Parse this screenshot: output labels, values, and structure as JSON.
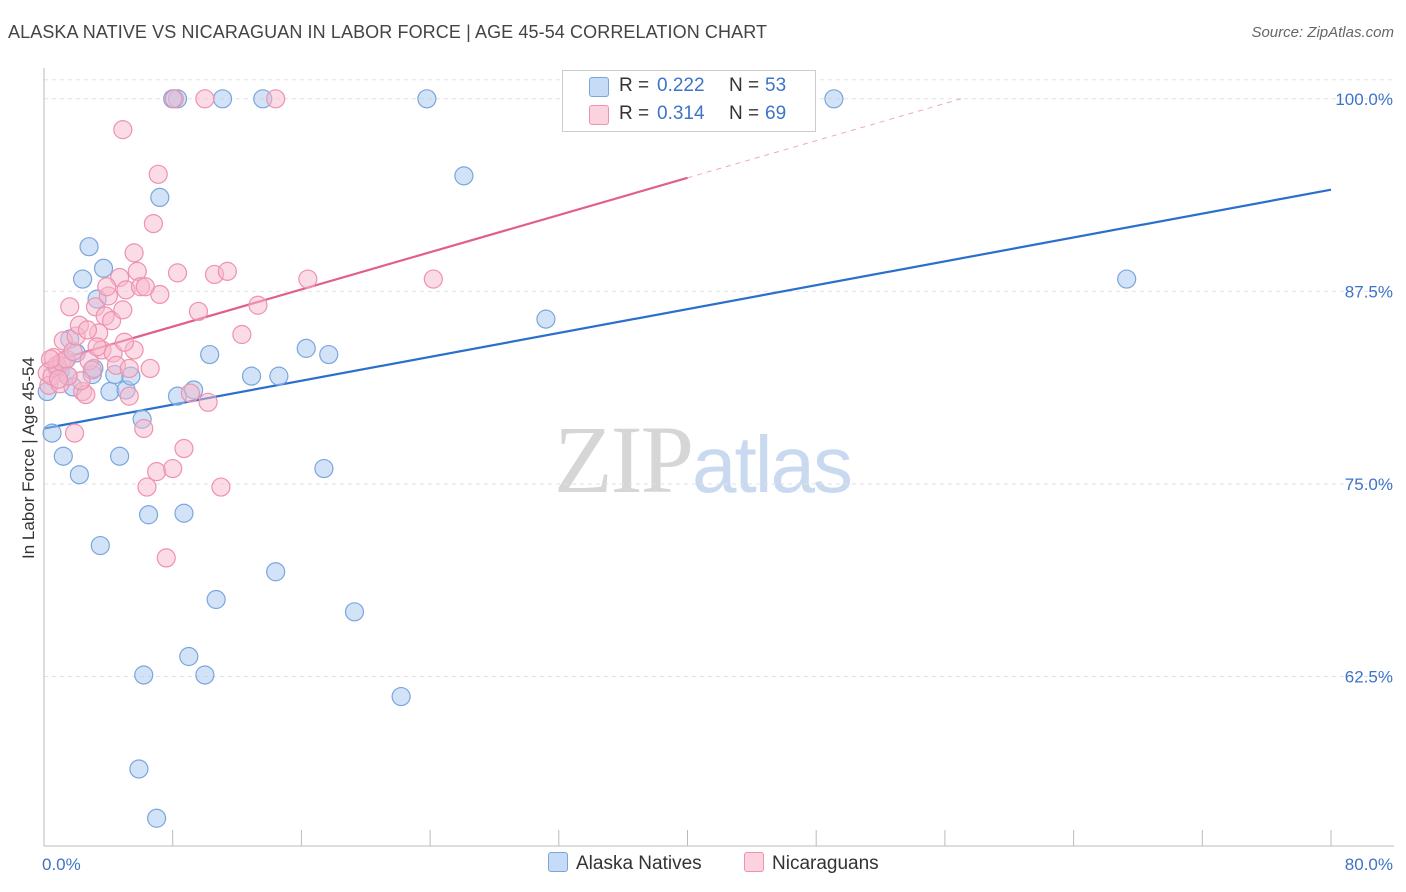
{
  "title": "ALASKA NATIVE VS NICARAGUAN IN LABOR FORCE | AGE 45-54 CORRELATION CHART",
  "source": "Source: ZipAtlas.com",
  "watermark": {
    "part1": "ZIP",
    "part2": "atlas"
  },
  "legend": {
    "series1": {
      "r_label": "R =",
      "r_value": "0.222",
      "n_label": "N =",
      "n_value": "53"
    },
    "series2": {
      "r_label": "R =",
      "r_value": "0.314",
      "n_label": "N =",
      "n_value": "69"
    }
  },
  "bottom_legend": {
    "series1": "Alaska Natives",
    "series2": "Nicaraguans"
  },
  "colors": {
    "blue_fill": "#a8c8f0",
    "blue_stroke": "#7aa6dd",
    "blue_line": "#2a6fcc",
    "pink_fill": "#f7b8cb",
    "pink_stroke": "#ee92b0",
    "pink_line": "#e0608a",
    "axis_label": "#3e73c8",
    "grid": "#e2e2e2"
  },
  "chart_data": {
    "type": "scatter",
    "title": "ALASKA NATIVE VS NICARAGUAN IN LABOR FORCE | AGE 45-54 CORRELATION CHART",
    "xlabel": "",
    "ylabel": "In Labor Force | Age 45-54",
    "xlim": [
      0,
      80
    ],
    "ylim": [
      51.5,
      102
    ],
    "x_tick_labels": [
      "0.0%",
      "80.0%"
    ],
    "y_ticks": [
      62.5,
      75.0,
      87.5,
      100.0
    ],
    "y_tick_labels": [
      "62.5%",
      "75.0%",
      "87.5%",
      "100.0%"
    ],
    "series": [
      {
        "name": "Alaska Natives",
        "r": 0.222,
        "n": 53,
        "trend": {
          "x": [
            0,
            80
          ],
          "y": [
            78.6,
            94.1
          ],
          "solid_until": 80
        },
        "points": [
          [
            0.2,
            81.0
          ],
          [
            0.5,
            78.3
          ],
          [
            0.8,
            82.5
          ],
          [
            1.0,
            82.3
          ],
          [
            1.2,
            76.8
          ],
          [
            1.3,
            83.0
          ],
          [
            1.5,
            82.0
          ],
          [
            1.6,
            84.4
          ],
          [
            1.8,
            81.3
          ],
          [
            2.0,
            83.5
          ],
          [
            2.2,
            75.6
          ],
          [
            2.4,
            88.3
          ],
          [
            2.8,
            90.4
          ],
          [
            3.0,
            82.1
          ],
          [
            3.1,
            82.5
          ],
          [
            3.3,
            87.0
          ],
          [
            3.5,
            71.0
          ],
          [
            3.7,
            89.0
          ],
          [
            4.1,
            81.0
          ],
          [
            4.4,
            82.1
          ],
          [
            4.7,
            76.8
          ],
          [
            5.1,
            81.1
          ],
          [
            5.4,
            82.0
          ],
          [
            5.9,
            56.5
          ],
          [
            6.1,
            79.2
          ],
          [
            6.2,
            62.6
          ],
          [
            6.5,
            73.0
          ],
          [
            7.0,
            53.3
          ],
          [
            7.2,
            93.6
          ],
          [
            8.3,
            80.7
          ],
          [
            8.7,
            73.1
          ],
          [
            9.0,
            63.8
          ],
          [
            9.3,
            81.1
          ],
          [
            10.0,
            62.6
          ],
          [
            10.3,
            83.4
          ],
          [
            10.7,
            67.5
          ],
          [
            12.9,
            82.0
          ],
          [
            14.4,
            69.3
          ],
          [
            14.6,
            82.0
          ],
          [
            16.3,
            83.8
          ],
          [
            17.4,
            76.0
          ],
          [
            17.7,
            83.4
          ],
          [
            19.3,
            66.7
          ],
          [
            22.2,
            61.2
          ],
          [
            23.8,
            100.0
          ],
          [
            26.1,
            95.0
          ],
          [
            31.2,
            85.7
          ],
          [
            67.3,
            88.3
          ],
          [
            8.3,
            100.0
          ],
          [
            11.1,
            100.0
          ],
          [
            13.6,
            100.0
          ],
          [
            8.0,
            100.0
          ],
          [
            49.1,
            100.0
          ]
        ]
      },
      {
        "name": "Nicaraguans",
        "r": 0.314,
        "n": 69,
        "trend": {
          "x": [
            0,
            57
          ],
          "y": [
            82.8,
            100.0
          ],
          "solid_until": 40
        },
        "points": [
          [
            0.2,
            82.2
          ],
          [
            0.3,
            81.4
          ],
          [
            0.5,
            82.0
          ],
          [
            0.6,
            83.2
          ],
          [
            0.8,
            82.7
          ],
          [
            1.0,
            81.5
          ],
          [
            1.1,
            82.9
          ],
          [
            1.2,
            84.3
          ],
          [
            1.4,
            83.1
          ],
          [
            1.6,
            86.5
          ],
          [
            1.8,
            83.6
          ],
          [
            2.0,
            84.6
          ],
          [
            2.2,
            85.3
          ],
          [
            2.4,
            81.0
          ],
          [
            2.6,
            80.8
          ],
          [
            2.8,
            83.0
          ],
          [
            3.0,
            82.4
          ],
          [
            3.2,
            86.5
          ],
          [
            3.4,
            84.8
          ],
          [
            3.6,
            83.7
          ],
          [
            3.8,
            85.9
          ],
          [
            4.0,
            87.2
          ],
          [
            4.2,
            85.6
          ],
          [
            4.3,
            83.5
          ],
          [
            4.5,
            82.7
          ],
          [
            4.7,
            88.4
          ],
          [
            4.9,
            86.3
          ],
          [
            5.1,
            87.6
          ],
          [
            5.3,
            82.5
          ],
          [
            5.6,
            90.0
          ],
          [
            5.8,
            88.8
          ],
          [
            6.0,
            87.8
          ],
          [
            6.2,
            78.6
          ],
          [
            6.4,
            74.8
          ],
          [
            6.6,
            82.5
          ],
          [
            6.8,
            91.9
          ],
          [
            7.0,
            75.8
          ],
          [
            7.2,
            87.3
          ],
          [
            7.6,
            70.2
          ],
          [
            8.3,
            88.7
          ],
          [
            8.7,
            77.3
          ],
          [
            9.1,
            80.9
          ],
          [
            9.6,
            86.2
          ],
          [
            10.2,
            80.3
          ],
          [
            10.6,
            88.6
          ],
          [
            11.0,
            74.8
          ],
          [
            11.4,
            88.8
          ],
          [
            12.3,
            84.7
          ],
          [
            13.3,
            86.6
          ],
          [
            14.4,
            100.0
          ],
          [
            16.4,
            88.3
          ],
          [
            4.9,
            98.0
          ],
          [
            5.6,
            83.7
          ],
          [
            5.0,
            84.2
          ],
          [
            3.9,
            87.8
          ],
          [
            3.3,
            83.9
          ],
          [
            2.7,
            85.0
          ],
          [
            2.3,
            81.7
          ],
          [
            1.9,
            78.3
          ],
          [
            1.5,
            82.0
          ],
          [
            0.9,
            81.8
          ],
          [
            0.4,
            83.1
          ],
          [
            5.3,
            80.7
          ],
          [
            6.3,
            87.8
          ],
          [
            7.1,
            95.1
          ],
          [
            8.0,
            76.0
          ],
          [
            8.1,
            100.0
          ],
          [
            10.0,
            100.0
          ],
          [
            24.2,
            88.3
          ]
        ]
      }
    ]
  }
}
